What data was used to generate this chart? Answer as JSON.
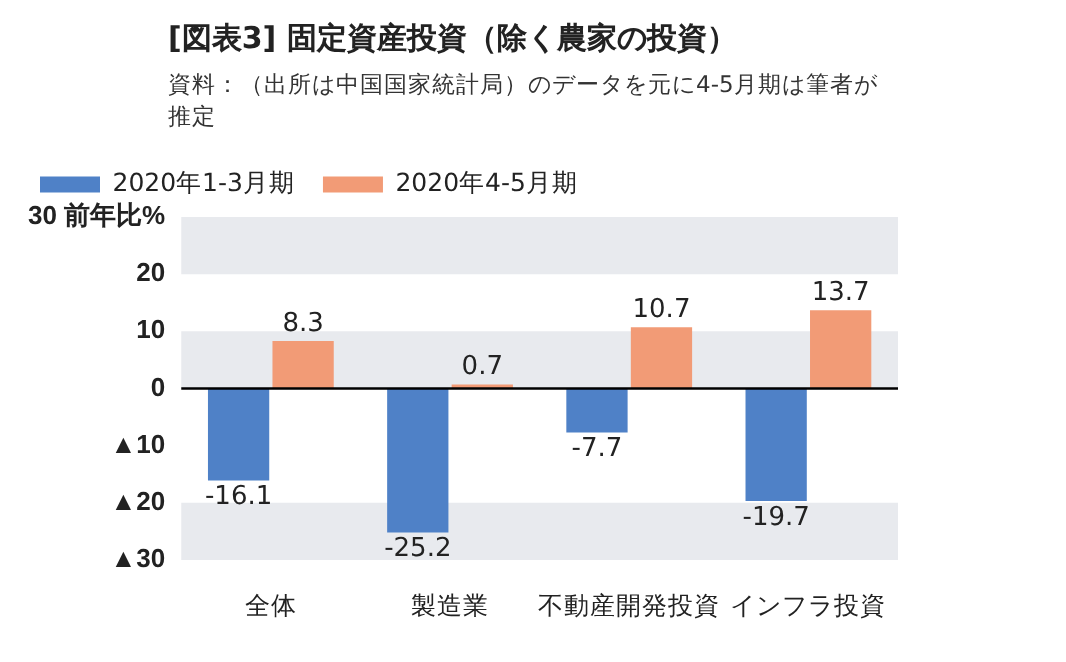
{
  "chart_data": {
    "type": "bar",
    "title": "[図表3] 固定資産投資（除く農家の投資）",
    "subtitle": "資料：（出所は中国国家統計局）のデータを元に4-5月期は筆者が推定",
    "categories": [
      "全体",
      "製造業",
      "不動産開発投資",
      "インフラ投資"
    ],
    "series": [
      {
        "name": "2020年1-3月期",
        "color": "#4f81c7",
        "values": [
          -16.1,
          -25.2,
          -7.7,
          -19.7
        ]
      },
      {
        "name": "2020年4-5月期",
        "color": "#f29b76",
        "values": [
          8.3,
          0.7,
          10.7,
          13.7
        ]
      }
    ],
    "ylim": [
      -30,
      30
    ],
    "yticks": [
      {
        "value": -30,
        "label": "▲30"
      },
      {
        "value": -20,
        "label": "▲20"
      },
      {
        "value": -10,
        "label": "▲10"
      },
      0,
      10,
      20,
      {
        "value": 30,
        "label": "30 前年比%"
      }
    ],
    "bands": [
      {
        "axis": "y",
        "from": 20,
        "to": 30,
        "color": "#e8eaee"
      },
      {
        "axis": "y",
        "from": 0,
        "to": 10,
        "color": "#e8eaee"
      },
      {
        "axis": "y",
        "from": -30,
        "to": -20,
        "color": "#e8eaee"
      }
    ],
    "ref_lines": [
      {
        "axis": "y",
        "value": 0,
        "color": "#000000"
      }
    ],
    "data_labels": true,
    "legend": "top left",
    "grid": false
  }
}
